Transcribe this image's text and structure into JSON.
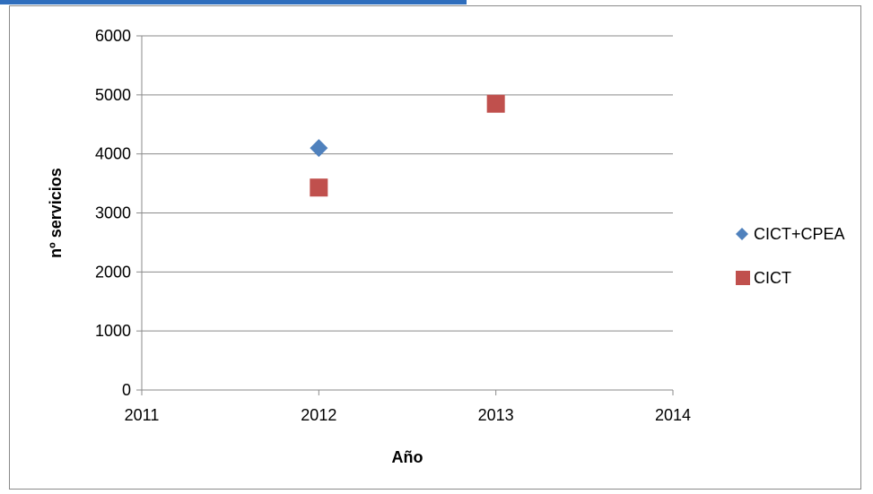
{
  "chart_data": {
    "type": "scatter",
    "xlabel": "Año",
    "ylabel": "nº servicios",
    "xlim": [
      2011,
      2014
    ],
    "ylim": [
      0,
      6000
    ],
    "x_ticks": [
      2011,
      2012,
      2013,
      2014
    ],
    "y_ticks": [
      0,
      1000,
      2000,
      3000,
      4000,
      5000,
      6000
    ],
    "grid": "horizontal",
    "legend_position": "right",
    "series": [
      {
        "name": "CICT+CPEA",
        "marker": "diamond",
        "color": "#4f81bd",
        "points": [
          {
            "x": 2012,
            "y": 4100
          }
        ]
      },
      {
        "name": "CICT",
        "marker": "square",
        "color": "#c0504d",
        "points": [
          {
            "x": 2012,
            "y": 3430
          },
          {
            "x": 2013,
            "y": 4850
          }
        ]
      }
    ]
  },
  "colors": {
    "header_band": "#2f6ebd",
    "grid": "#8a8a8a",
    "frame": "#8a8a8a"
  }
}
